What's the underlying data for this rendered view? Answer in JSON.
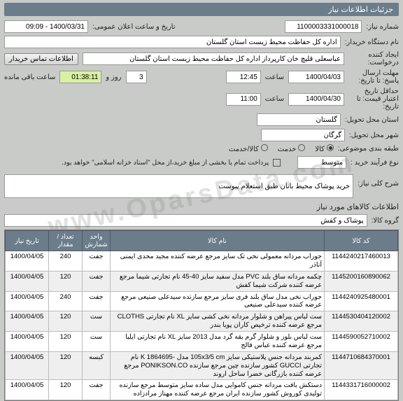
{
  "panel_title": "جزئیات اطلاعات نیاز",
  "fields": {
    "need_no_label": "شماره نیاز:",
    "need_no": "1100003331000018",
    "ann_dt_label": "تاریخ و ساعت اعلان عمومی:",
    "ann_dt": "1400/03/31 - 09:09",
    "buyer_org_label": "نام دستگاه خریدار:",
    "buyer_org": "اداره کل حفاظت محیط زیست استان گلستان",
    "creator_label": "ایجاد کننده درخواست:",
    "creator": "عباسعلی  قلیچ خان  کارپرداز اداره کل حفاظت محیط زیست استان گلستان",
    "contact_btn": "اطلاعات تماس خریدار",
    "resp_deadline_label": "مهلت ارسال پاسخ:\nتا تاریخ:",
    "resp_date": "1400/04/03",
    "resp_time_label": "ساعت",
    "resp_time": "12:45",
    "remain_days": "3",
    "remain_days_label": "روز و",
    "remain_time": "01:38:11",
    "remain_time_label": "ساعت باقی مانده",
    "price_valid_label": "حداقل تاریخ اعتبار\nقیمت:  تا تاریخ:",
    "price_valid_date": "1400/04/30",
    "price_valid_time": "11:00",
    "deliver_state_label": "استان محل تحویل:",
    "deliver_state": "گلستان",
    "deliver_city_label": "شهر محل تحویل:",
    "deliver_city": "گرگان",
    "class_label": "طبقه بندی موضوعی:",
    "class_kala_label": "کالا",
    "class_service_label": "خدمت",
    "class_both_label": "کالا/خدمت",
    "buy_proc_label": "نوع فرآیند خرید :",
    "buy_proc": "متوسط",
    "pay_note": "پرداخت تمام یا بخشی از مبلغ خرید،از محل \"اسناد خزانه اسلامی\" خواهد بود.",
    "need_desc_label": "شرح کلی نیاز:",
    "need_desc": "خرید پوشاک محیط بانان طبق استعلام پیوست",
    "items_title": "اطلاعات کالاهای مورد نیاز",
    "group_label": "گروه کالا:",
    "group": "پوشاک و کفش"
  },
  "table": {
    "headers": [
      "کد کالا",
      "نام کالا",
      "واحد شمارش",
      "تعداد / مقدار",
      "تاریخ نیاز"
    ],
    "rows": [
      [
        "1144240217460013",
        "جوراب مردانه معمولی نخی تک سایز مرجع عرضه کننده مجید محدی ایمنی آناذر",
        "جفت",
        "240",
        "1400/04/05"
      ],
      [
        "1145200160890062",
        "چکمه مردانه ساق بلند PVC مدل سفید سایز 40-45 نام تجارتی شیما مرجع عرضه کننده شرکت شیما کفش",
        "جفت",
        "120",
        "1400/04/05"
      ],
      [
        "1144240925480001",
        "جوراب نخی مدل ساق بلند فری سایز مرجع سازنده سیدعلی صنیعی مرجع عرضه کننده سیدعلی صنیعی",
        "جفت",
        "240",
        "1400/04/05"
      ],
      [
        "1144530404120002",
        "ست لباس پیراهن و شلوار مردانه نخی کشی سایز XL نام تجارتی CLOTHS مرجع عرضه کننده ترخیص کاران پویا بندر",
        "ست",
        "120",
        "1400/04/05"
      ],
      [
        "1144590052710002",
        "ست لباس بلوز و شلوار گرم بقه گرد مدل 2013 سایز XL نام تجارتی ایلیا مرجع عرضه کننده عباس فالج",
        "ست",
        "120",
        "1400/04/05"
      ],
      [
        "1144710684370001",
        "کمربند مردانه جنس پلاستیکی سایز 105x3/5 cm مدل -K 1864695 نام تجارتی GUCCI کشور سازنده چین مرجع سازنده PONIKSON.CO مرجع عرضه کننده بازرگانی خضرا ساحل اروند",
        "کبسه",
        "120",
        "1400/04/05"
      ],
      [
        "1144331716000002",
        "دستکش بافت مردانه جنس کاموایی مدل ساده سایز متوسط مرجع سازنده تولیدی کوروش کشور سازنده ایران مرجع عرضه کننده مهناز مرادزاده",
        "جفت",
        "120",
        "1400/04/05"
      ]
    ]
  },
  "colors": {
    "header_bg": "#6b7d8a",
    "page_bg": "#c9cbc9",
    "highlight": "#d9f0a3"
  }
}
